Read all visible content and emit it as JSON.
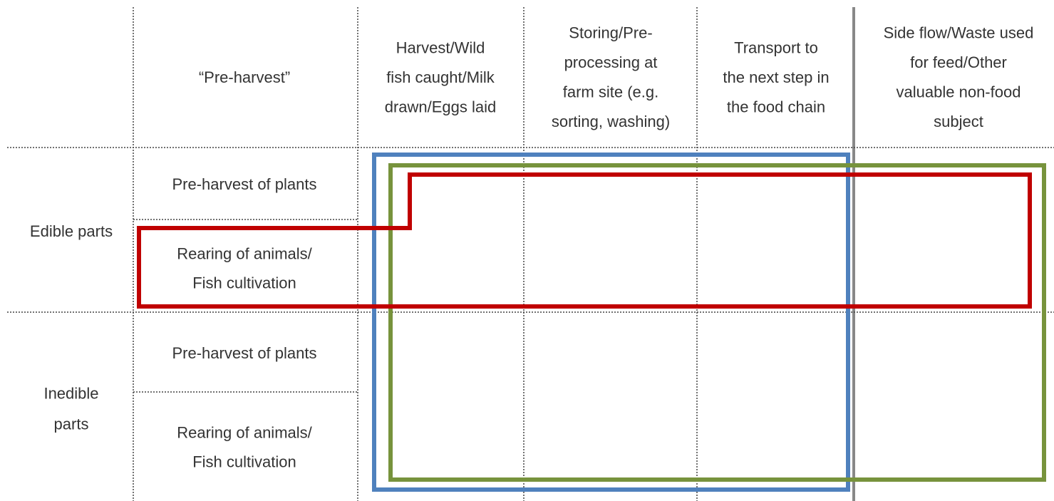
{
  "headers": [
    [
      "“Pre-harvest”"
    ],
    [
      "Harvest/Wild",
      "fish caught/Milk",
      "drawn/Eggs laid"
    ],
    [
      "Storing/Pre-",
      "processing at",
      "farm site (e.g.",
      "sorting, washing)"
    ],
    [
      "Transport to",
      "the next step in",
      "the food chain"
    ],
    [
      "Side flow/Waste used",
      "for feed/Other",
      "valuable non-food",
      "subject"
    ]
  ],
  "groups": [
    {
      "label": [
        "Edible parts"
      ],
      "rows": [
        [
          "Pre-harvest of plants"
        ],
        [
          "Rearing of animals/",
          "Fish cultivation"
        ]
      ]
    },
    {
      "label": [
        "Inedible",
        "parts"
      ],
      "rows": [
        [
          "Pre-harvest of plants"
        ],
        [
          "Rearing of animals/",
          "Fish cultivation"
        ]
      ]
    }
  ]
}
